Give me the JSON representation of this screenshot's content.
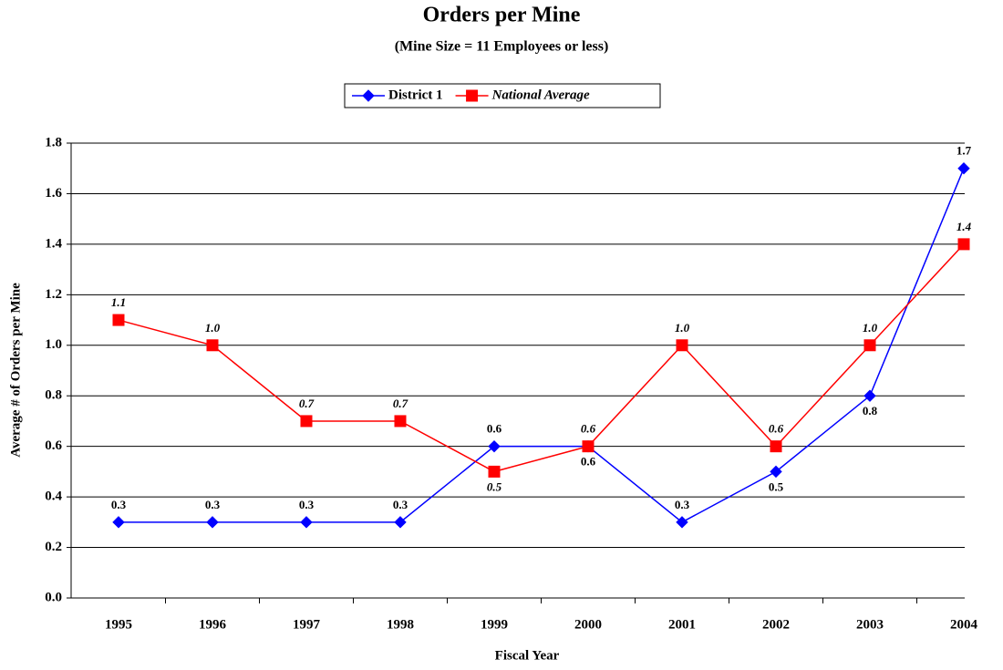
{
  "chart_data": {
    "type": "line",
    "title": "Orders per Mine",
    "subtitle": "(Mine Size = 11 Employees or less)",
    "x_label": "Fiscal Year",
    "y_label": "Average # of Orders per Mine",
    "categories": [
      "1995",
      "1996",
      "1997",
      "1998",
      "1999",
      "2000",
      "2001",
      "2002",
      "2003",
      "2004"
    ],
    "series": [
      {
        "name": "District 1",
        "color": "#0000ff",
        "marker": "diamond",
        "values": [
          0.3,
          0.3,
          0.3,
          0.3,
          0.6,
          0.6,
          0.3,
          0.5,
          0.8,
          1.7
        ],
        "value_labels": [
          "0.3",
          "0.3",
          "0.3",
          "0.3",
          "0.6",
          "0.6",
          "0.3",
          "0.5",
          "0.8",
          "1.7"
        ]
      },
      {
        "name": "National Average",
        "color": "#ff0000",
        "marker": "square",
        "values": [
          1.1,
          1.0,
          0.7,
          0.7,
          0.5,
          0.6,
          1.0,
          0.6,
          1.0,
          1.4
        ],
        "value_labels": [
          "1.1",
          "1.0",
          "0.7",
          "0.7",
          "0.5",
          "0.6",
          "1.0",
          "0.6",
          "1.0",
          "1.4"
        ]
      }
    ],
    "ylim": [
      0,
      1.8
    ],
    "yticks": [
      {
        "value": 0,
        "label": "0.0"
      },
      0.2,
      0.4,
      0.6,
      0.8,
      {
        "value": 1,
        "label": "1.0"
      },
      1.2,
      1.4,
      1.6,
      1.8
    ],
    "grid": true,
    "legend": "top"
  }
}
